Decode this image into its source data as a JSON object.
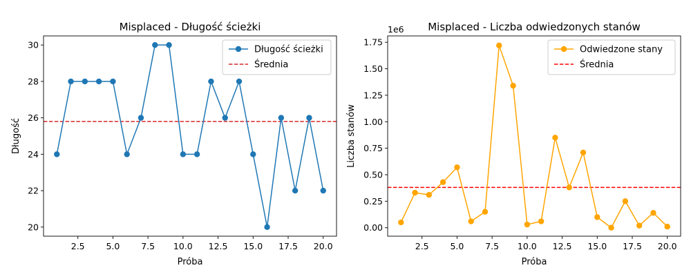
{
  "chart_data": [
    {
      "type": "line",
      "title": "Misplaced - Długość ścieżki",
      "xlabel": "Próba",
      "ylabel": "Długość",
      "xlim": [
        0.05,
        20.95
      ],
      "ylim": [
        19.5,
        30.5
      ],
      "xticks": [
        2.5,
        5.0,
        7.5,
        10.0,
        12.5,
        15.0,
        17.5,
        20.0
      ],
      "xtick_labels": [
        "2.5",
        "5.0",
        "7.5",
        "10.0",
        "12.5",
        "15.0",
        "17.5",
        "20.0"
      ],
      "yticks": [
        20,
        22,
        24,
        26,
        28,
        30
      ],
      "ytick_labels": [
        "20",
        "22",
        "24",
        "26",
        "28",
        "30"
      ],
      "grid": false,
      "legend_position": "top-right",
      "x": [
        1,
        2,
        3,
        4,
        5,
        6,
        7,
        8,
        9,
        10,
        11,
        12,
        13,
        14,
        15,
        16,
        17,
        18,
        19,
        20
      ],
      "series": [
        {
          "name": "Długość ścieżki",
          "color": "#1f77b4",
          "values": [
            24,
            28,
            28,
            28,
            28,
            24,
            26,
            30,
            30,
            24,
            24,
            28,
            26,
            28,
            24,
            20,
            26,
            22,
            26,
            22
          ]
        }
      ],
      "mean_line": {
        "name": "Średnia",
        "color": "#d62728",
        "value": 25.8
      }
    },
    {
      "type": "line",
      "title": "Misplaced - Liczba odwiedzonych stanów",
      "xlabel": "Próba",
      "ylabel": "Liczba stanów",
      "offset_text": "1e6",
      "xlim": [
        0.05,
        20.95
      ],
      "ylim": [
        -0.08,
        1.81
      ],
      "xticks": [
        2.5,
        5.0,
        7.5,
        10.0,
        12.5,
        15.0,
        17.5,
        20.0
      ],
      "xtick_labels": [
        "2.5",
        "5.0",
        "7.5",
        "10.0",
        "12.5",
        "15.0",
        "17.5",
        "20.0"
      ],
      "yticks": [
        0,
        0.25,
        0.5,
        0.75,
        1.0,
        1.25,
        1.5,
        1.75
      ],
      "ytick_labels": [
        "0.00",
        "0.25",
        "0.50",
        "0.75",
        "1.00",
        "1.25",
        "1.50",
        "1.75"
      ],
      "grid": false,
      "legend_position": "top-right",
      "x": [
        1,
        2,
        3,
        4,
        5,
        6,
        7,
        8,
        9,
        10,
        11,
        12,
        13,
        14,
        15,
        16,
        17,
        18,
        19,
        20
      ],
      "series": [
        {
          "name": "Odwiedzone stany",
          "color": "#ffa500",
          "values": [
            0.05,
            0.33,
            0.31,
            0.43,
            0.57,
            0.06,
            0.15,
            1.72,
            1.34,
            0.03,
            0.06,
            0.85,
            0.38,
            0.71,
            0.1,
            0.0,
            0.25,
            0.02,
            0.14,
            0.01
          ]
        }
      ],
      "mean_line": {
        "name": "Średnia",
        "color": "#ff0000",
        "value": 0.38
      }
    }
  ]
}
